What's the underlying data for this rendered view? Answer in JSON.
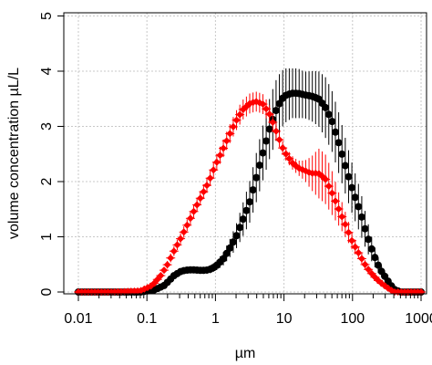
{
  "chart_data": {
    "type": "scatter",
    "title": "",
    "xlabel": "µm",
    "ylabel": "volume concentration µL/L",
    "x_scale": "log",
    "xlim": [
      0.01,
      1000
    ],
    "ylim": [
      0,
      5
    ],
    "grid": true,
    "legend": "none",
    "x_tick_labels": [
      "0.01",
      "0.1",
      "1",
      "10",
      "100",
      "1000"
    ],
    "x_tick_values": [
      0.01,
      0.1,
      1,
      10,
      100,
      1000
    ],
    "y_tick_labels": [
      "0",
      "1",
      "2",
      "3",
      "4",
      "5"
    ],
    "y_tick_values": [
      0,
      1,
      2,
      3,
      4,
      5
    ],
    "series": [
      {
        "color": "#000000",
        "marker": "filled-circle",
        "error_bars": true,
        "x": [
          0.01,
          0.03,
          0.08,
          0.13,
          0.18,
          0.25,
          0.32,
          0.4,
          0.5,
          0.63,
          0.8,
          1.0,
          1.3,
          1.6,
          2.0,
          2.5,
          3.2,
          4.0,
          5.0,
          6.3,
          8.0,
          10,
          13,
          16,
          20,
          25,
          32,
          40,
          50,
          63,
          80,
          100,
          130,
          160,
          200,
          250,
          320,
          400,
          500,
          1000
        ],
        "y": [
          0.0,
          0.0,
          0.0,
          0.04,
          0.12,
          0.3,
          0.38,
          0.4,
          0.4,
          0.39,
          0.4,
          0.46,
          0.6,
          0.78,
          1.0,
          1.3,
          1.65,
          2.1,
          2.55,
          3.0,
          3.35,
          3.55,
          3.6,
          3.6,
          3.57,
          3.55,
          3.5,
          3.35,
          3.1,
          2.7,
          2.25,
          1.85,
          1.45,
          1.05,
          0.7,
          0.42,
          0.22,
          0.05,
          0.0,
          0.0
        ],
        "error": [
          0.0,
          0.0,
          0.0,
          0.01,
          0.03,
          0.05,
          0.06,
          0.06,
          0.06,
          0.06,
          0.07,
          0.08,
          0.12,
          0.16,
          0.22,
          0.3,
          0.38,
          0.45,
          0.5,
          0.55,
          0.55,
          0.5,
          0.45,
          0.45,
          0.42,
          0.45,
          0.5,
          0.55,
          0.55,
          0.55,
          0.5,
          0.45,
          0.4,
          0.3,
          0.2,
          0.12,
          0.06,
          0.02,
          0.0,
          0.0
        ]
      },
      {
        "color": "#ff0000",
        "marker": "filled-diamond",
        "error_bars": true,
        "x": [
          0.01,
          0.03,
          0.08,
          0.12,
          0.16,
          0.2,
          0.25,
          0.32,
          0.4,
          0.5,
          0.63,
          0.8,
          1.0,
          1.3,
          1.6,
          2.0,
          2.5,
          3.2,
          4.0,
          5.0,
          6.3,
          8.0,
          10,
          13,
          16,
          20,
          25,
          32,
          40,
          50,
          63,
          80,
          100,
          130,
          160,
          200,
          250,
          320,
          400,
          1000
        ],
        "y": [
          0.0,
          0.0,
          0.02,
          0.12,
          0.3,
          0.5,
          0.75,
          1.0,
          1.25,
          1.5,
          1.75,
          2.0,
          2.3,
          2.6,
          2.85,
          3.1,
          3.3,
          3.42,
          3.45,
          3.4,
          3.2,
          2.85,
          2.55,
          2.35,
          2.25,
          2.2,
          2.15,
          2.15,
          2.05,
          1.8,
          1.5,
          1.2,
          0.9,
          0.65,
          0.45,
          0.3,
          0.18,
          0.08,
          0.0,
          0.0
        ],
        "error": [
          0.0,
          0.0,
          0.01,
          0.03,
          0.05,
          0.07,
          0.09,
          0.1,
          0.11,
          0.12,
          0.13,
          0.14,
          0.15,
          0.16,
          0.17,
          0.18,
          0.18,
          0.18,
          0.18,
          0.18,
          0.16,
          0.14,
          0.12,
          0.12,
          0.13,
          0.18,
          0.3,
          0.45,
          0.45,
          0.4,
          0.3,
          0.22,
          0.15,
          0.1,
          0.07,
          0.05,
          0.03,
          0.02,
          0.0,
          0.0
        ]
      }
    ]
  }
}
